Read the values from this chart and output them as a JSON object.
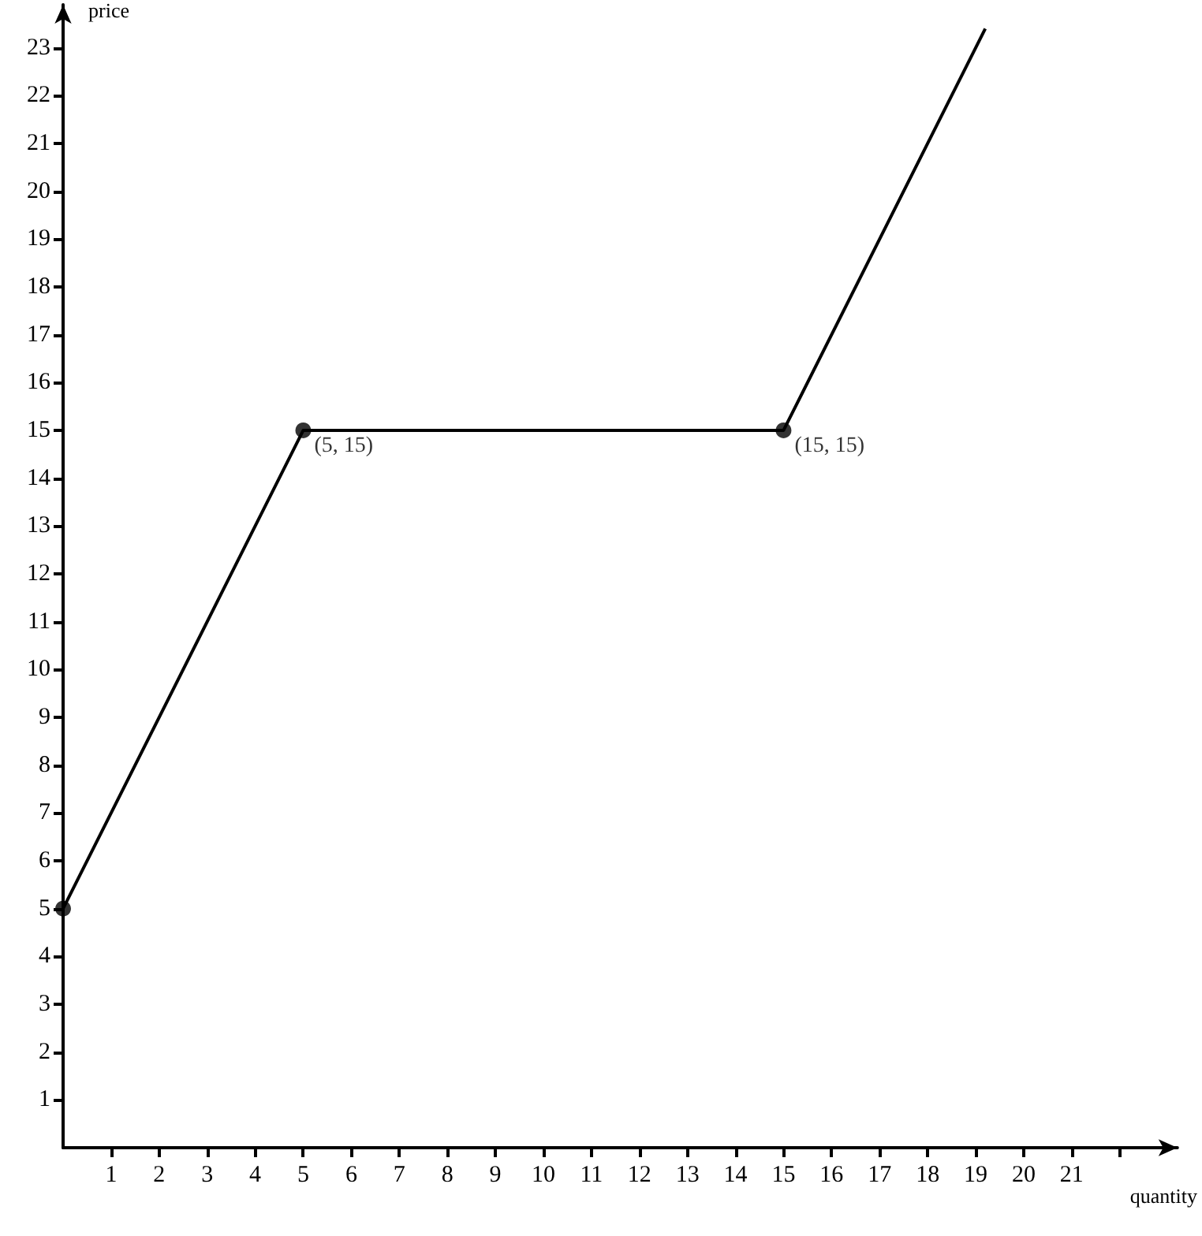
{
  "chart_data": {
    "type": "line",
    "xlabel": "quantity",
    "ylabel": "price",
    "xlim": [
      0,
      23.2
    ],
    "ylim": [
      0,
      23.9
    ],
    "xticks": [
      1,
      2,
      3,
      4,
      5,
      6,
      7,
      8,
      9,
      10,
      11,
      12,
      13,
      14,
      15,
      16,
      17,
      18,
      19,
      20,
      21,
      {
        "value": 22,
        "label": null
      }
    ],
    "yticks": [
      1,
      2,
      3,
      4,
      5,
      6,
      7,
      8,
      9,
      10,
      11,
      12,
      13,
      14,
      15,
      16,
      17,
      18,
      19,
      20,
      21,
      22,
      23
    ],
    "grid": false,
    "series": [
      {
        "color": "#000000",
        "marker": "none",
        "line_style": "solid",
        "x": [
          0,
          5,
          15,
          19.2
        ],
        "values": [
          5,
          15,
          15,
          23.4
        ]
      },
      {
        "type": "scatter",
        "color": "#000000",
        "marker": "circle",
        "x": [
          0,
          5,
          15
        ],
        "values": [
          5,
          15,
          15
        ]
      }
    ],
    "annotations": [
      {
        "text": "(5, 15)",
        "x": 5,
        "y": 15
      },
      {
        "text": "(15, 15)",
        "x": 15,
        "y": 15
      }
    ]
  }
}
